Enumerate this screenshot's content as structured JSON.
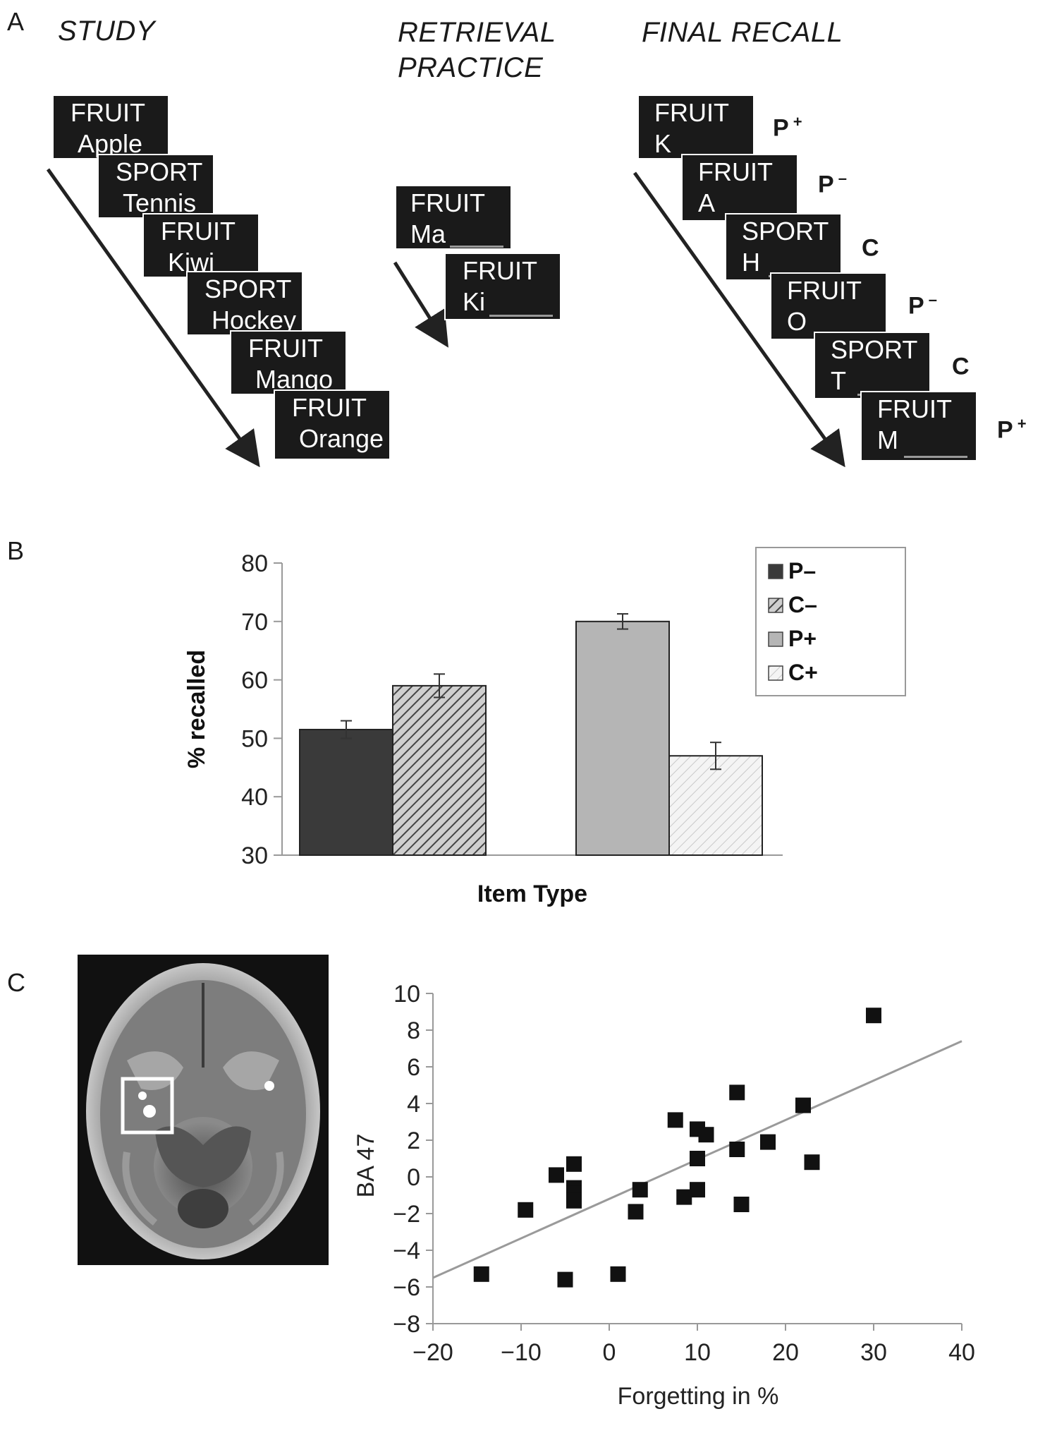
{
  "panel_a": {
    "label": "A",
    "study": {
      "heading": "STUDY",
      "cards": [
        {
          "category": "FRUIT",
          "word": "Apple"
        },
        {
          "category": "SPORT",
          "word": "Tennis"
        },
        {
          "category": "FRUIT",
          "word": "Kiwi"
        },
        {
          "category": "SPORT",
          "word": "Hockey"
        },
        {
          "category": "FRUIT",
          "word": "Mango"
        },
        {
          "category": "FRUIT",
          "word": "Orange"
        }
      ]
    },
    "retrieval_practice": {
      "heading_line1": "RETRIEVAL",
      "heading_line2": "PRACTICE",
      "cards": [
        {
          "category": "FRUIT",
          "cue": "Ma"
        },
        {
          "category": "FRUIT",
          "cue": "Ki"
        }
      ]
    },
    "final_recall": {
      "heading": "FINAL RECALL",
      "cards": [
        {
          "category": "FRUIT",
          "cue": "K",
          "type": "P",
          "sign": "+"
        },
        {
          "category": "FRUIT",
          "cue": "A",
          "type": "P",
          "sign": "–"
        },
        {
          "category": "SPORT",
          "cue": "H",
          "type": "C",
          "sign": ""
        },
        {
          "category": "FRUIT",
          "cue": "O",
          "type": "P",
          "sign": "–"
        },
        {
          "category": "SPORT",
          "cue": "T",
          "type": "C",
          "sign": ""
        },
        {
          "category": "FRUIT",
          "cue": "M",
          "type": "P",
          "sign": "+"
        }
      ]
    }
  },
  "panel_b": {
    "label": "B",
    "chart_data": {
      "type": "bar",
      "categories": [
        "P–",
        "C–",
        "P+",
        "C+"
      ],
      "values": [
        51.5,
        59,
        70,
        47
      ],
      "errors": [
        1.5,
        2,
        1.3,
        2.3
      ],
      "fills": [
        "#3a3a3a",
        "hatch-dark",
        "#b5b5b5",
        "hatch-light"
      ],
      "groups": [
        [
          0,
          1
        ],
        [
          2,
          3
        ]
      ],
      "xlabel": "Item Type",
      "ylabel": "% recalled",
      "ylim": [
        30,
        80
      ],
      "yticks": [
        30,
        40,
        50,
        60,
        70,
        80
      ],
      "legend": {
        "placement": "top-right",
        "entries": [
          "P–",
          "C–",
          "P+",
          "C+"
        ]
      }
    }
  },
  "panel_c": {
    "label": "C",
    "brain_image": "axial brain slice with highlighted region box",
    "chart_data": {
      "type": "scatter",
      "xlabel": "Forgetting in %",
      "ylabel": "BA 47",
      "xlim": [
        -20,
        40
      ],
      "ylim": [
        -8,
        10
      ],
      "xticks": [
        -20,
        -10,
        0,
        10,
        20,
        30,
        40
      ],
      "yticks": [
        -8,
        -6,
        -4,
        -2,
        0,
        2,
        4,
        6,
        8,
        10
      ],
      "points": [
        {
          "x": 30,
          "y": 8.8
        },
        {
          "x": 14.5,
          "y": 4.6
        },
        {
          "x": 22,
          "y": 3.9
        },
        {
          "x": 7.5,
          "y": 3.1
        },
        {
          "x": 10,
          "y": 2.6
        },
        {
          "x": 11,
          "y": 2.3
        },
        {
          "x": 18,
          "y": 1.9
        },
        {
          "x": 14.5,
          "y": 1.5
        },
        {
          "x": 10,
          "y": 1.0
        },
        {
          "x": 23,
          "y": 0.8
        },
        {
          "x": -4,
          "y": 0.7
        },
        {
          "x": -6,
          "y": 0.1
        },
        {
          "x": -4,
          "y": -0.6
        },
        {
          "x": -4,
          "y": -0.9
        },
        {
          "x": -4,
          "y": -1.3
        },
        {
          "x": 3.5,
          "y": -0.7
        },
        {
          "x": 10,
          "y": -0.7
        },
        {
          "x": 8.5,
          "y": -1.1
        },
        {
          "x": 15,
          "y": -1.5
        },
        {
          "x": -9.5,
          "y": -1.8
        },
        {
          "x": 3,
          "y": -1.9
        },
        {
          "x": -14.5,
          "y": -5.3
        },
        {
          "x": 1,
          "y": -5.3
        },
        {
          "x": -5,
          "y": -5.6
        }
      ],
      "fit_line": {
        "x": [
          -20,
          40
        ],
        "y": [
          -5.5,
          7.4
        ]
      }
    }
  }
}
